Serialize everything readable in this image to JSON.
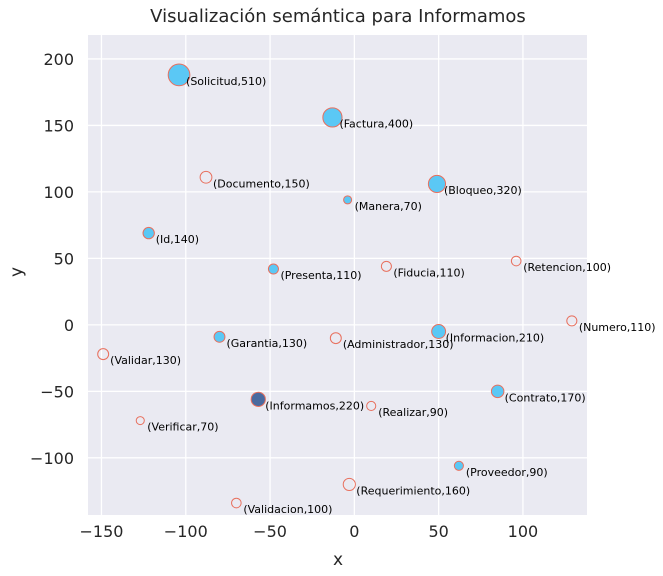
{
  "chart_data": {
    "type": "scatter",
    "title": "Visualización semántica para Informamos",
    "xlabel": "x",
    "ylabel": "y",
    "xlim": [
      -158,
      138
    ],
    "ylim": [
      -143,
      218
    ],
    "xticks": [
      -150,
      -100,
      -50,
      0,
      50,
      100
    ],
    "xtick_labels": [
      "−150",
      "−100",
      "−50",
      "0",
      "50",
      "100"
    ],
    "yticks": [
      -100,
      -50,
      0,
      50,
      100,
      150,
      200
    ],
    "ytick_labels": [
      "−100",
      "−50",
      "0",
      "50",
      "100",
      "150",
      "200"
    ],
    "grid": true,
    "points": [
      {
        "word": "Solicitud",
        "value": 510,
        "label": "(Solicitud,510)",
        "x": -104,
        "y": 188,
        "style": "filled"
      },
      {
        "word": "Factura",
        "value": 400,
        "label": "(Factura,400)",
        "x": -13,
        "y": 156,
        "style": "filled"
      },
      {
        "word": "Documento",
        "value": 150,
        "label": "(Documento,150)",
        "x": -88,
        "y": 111,
        "style": "hollow"
      },
      {
        "word": "Bloqueo",
        "value": 320,
        "label": "(Bloqueo,320)",
        "x": 49,
        "y": 106,
        "style": "filled"
      },
      {
        "word": "Manera",
        "value": 70,
        "label": "(Manera,70)",
        "x": -4,
        "y": 94,
        "style": "filled"
      },
      {
        "word": "Id",
        "value": 140,
        "label": "(Id,140)",
        "x": -122,
        "y": 69,
        "style": "filled"
      },
      {
        "word": "Presenta",
        "value": 110,
        "label": "(Presenta,110)",
        "x": -48,
        "y": 42,
        "style": "filled"
      },
      {
        "word": "Fiducia",
        "value": 110,
        "label": "(Fiducia,110)",
        "x": 19,
        "y": 44,
        "style": "hollow"
      },
      {
        "word": "Retencion",
        "value": 100,
        "label": "(Retencion,100)",
        "x": 96,
        "y": 48,
        "style": "hollow"
      },
      {
        "word": "Numero",
        "value": 110,
        "label": "(Numero,110)",
        "x": 129,
        "y": 3,
        "style": "hollow"
      },
      {
        "word": "Garantia",
        "value": 130,
        "label": "(Garantia,130)",
        "x": -80,
        "y": -9,
        "style": "filled"
      },
      {
        "word": "Administrador",
        "value": 130,
        "label": "(Administrador,130)",
        "x": -11,
        "y": -10,
        "style": "hollow"
      },
      {
        "word": "Informacion",
        "value": 210,
        "label": "(Informacion,210)",
        "x": 50,
        "y": -5,
        "style": "filled"
      },
      {
        "word": "Validar",
        "value": 130,
        "label": "(Validar,130)",
        "x": -149,
        "y": -22,
        "style": "hollow"
      },
      {
        "word": "Contrato",
        "value": 170,
        "label": "(Contrato,170)",
        "x": 85,
        "y": -50,
        "style": "filled"
      },
      {
        "word": "Informamos",
        "value": 220,
        "label": "(Informamos,220)",
        "x": -57,
        "y": -56,
        "style": "target"
      },
      {
        "word": "Realizar",
        "value": 90,
        "label": "(Realizar,90)",
        "x": 10,
        "y": -61,
        "style": "hollow"
      },
      {
        "word": "Verificar",
        "value": 70,
        "label": "(Verificar,70)",
        "x": -127,
        "y": -72,
        "style": "hollow"
      },
      {
        "word": "Proveedor",
        "value": 90,
        "label": "(Proveedor,90)",
        "x": 62,
        "y": -106,
        "style": "filled"
      },
      {
        "word": "Requerimiento",
        "value": 160,
        "label": "(Requerimiento,160)",
        "x": -3,
        "y": -120,
        "style": "hollow"
      },
      {
        "word": "Validacion",
        "value": 100,
        "label": "(Validacion,100)",
        "x": -70,
        "y": -134,
        "style": "hollow"
      }
    ],
    "colors": {
      "background": "#eaeaf2",
      "grid": "#ffffff",
      "filled": "#5bc8f5",
      "target": "#4a6a9f",
      "edge": "#e8705e"
    }
  }
}
